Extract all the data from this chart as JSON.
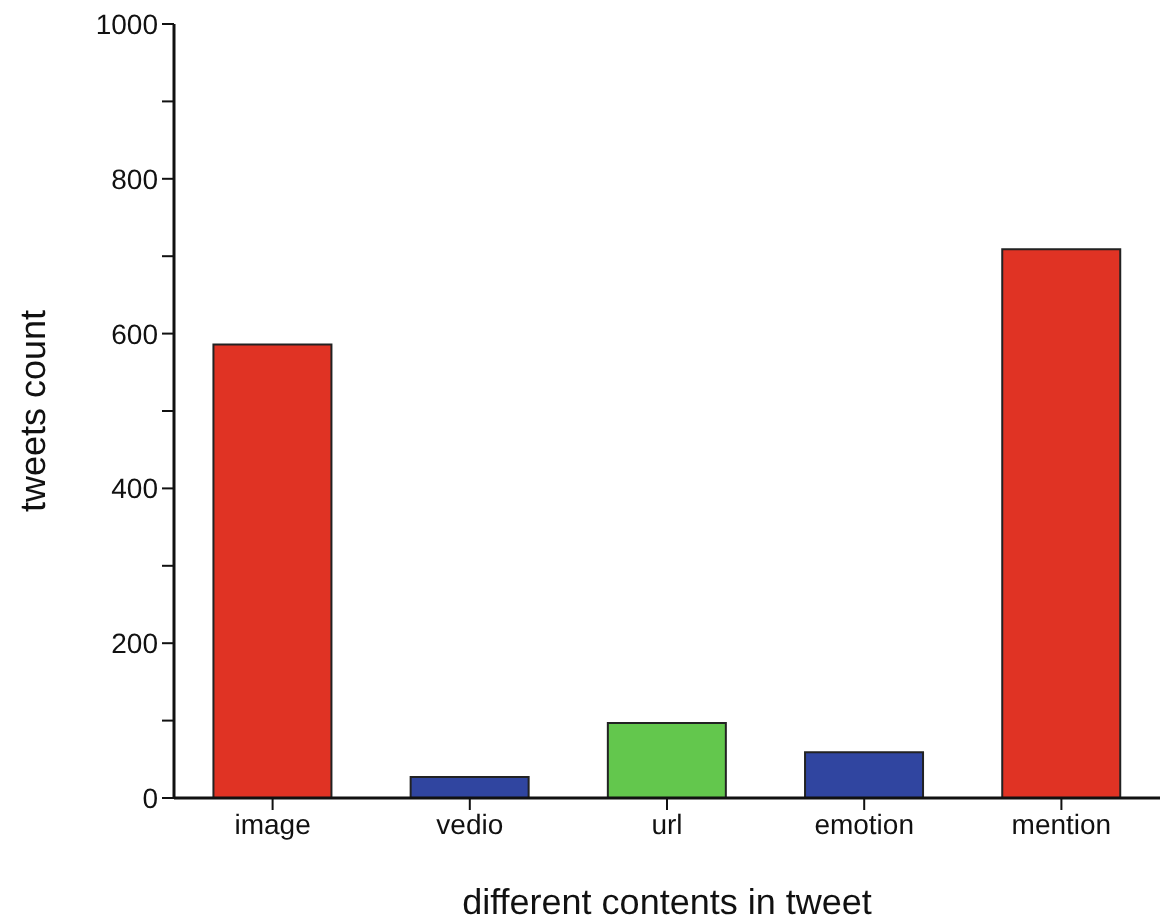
{
  "chart_data": {
    "type": "bar",
    "xlabel": "different contents in tweet",
    "ylabel": "tweets count",
    "categories": [
      "image",
      "vedio",
      "url",
      "emotion",
      "mention"
    ],
    "values": [
      586,
      27,
      97,
      59,
      709
    ],
    "colors": [
      "#e03324",
      "#3045a0",
      "#63c74d",
      "#3045a0",
      "#e03324"
    ],
    "ylim": [
      0,
      1000
    ],
    "yticks": [
      0,
      {
        "value": 100,
        "label": null
      },
      200,
      {
        "value": 300,
        "label": null
      },
      400,
      {
        "value": 500,
        "label": null
      },
      600,
      {
        "value": 700,
        "label": null
      },
      800,
      {
        "value": 900,
        "label": null
      },
      1000
    ],
    "grid": false,
    "legend": false
  }
}
